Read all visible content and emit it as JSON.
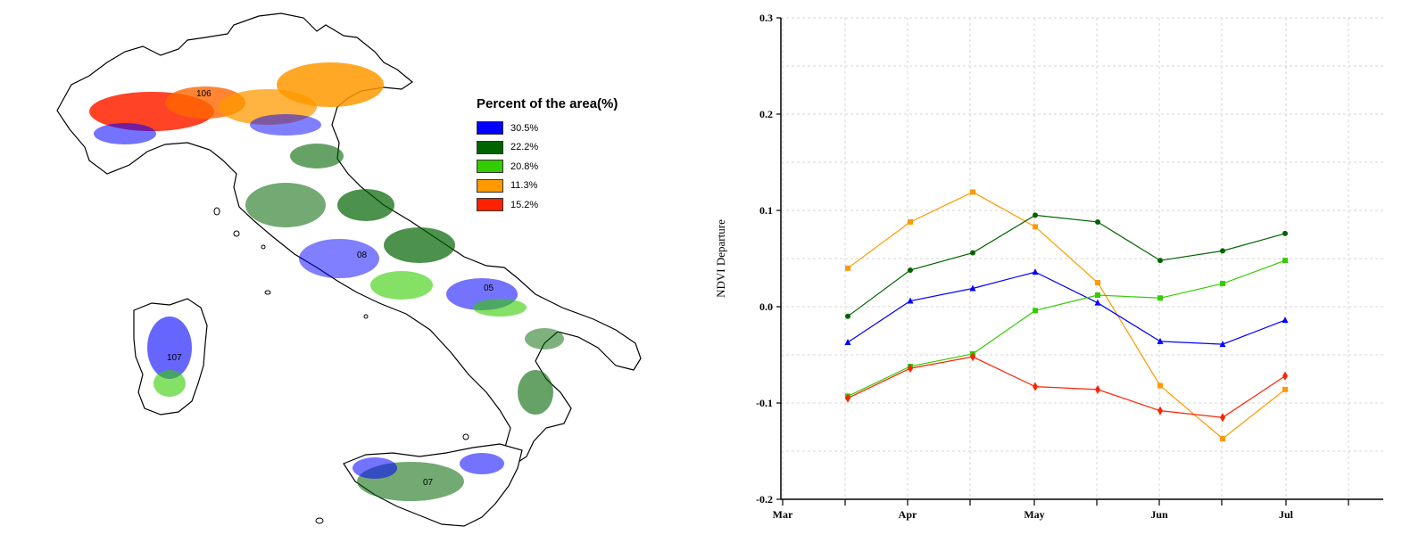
{
  "map": {
    "region_labels": [
      "106",
      "08",
      "107",
      "07",
      "05"
    ],
    "legend": {
      "title": "Percent of the area(%)",
      "items": [
        {
          "label": "30.5%",
          "color": "#0000ff"
        },
        {
          "label": "22.2%",
          "color": "#006400"
        },
        {
          "label": "20.8%",
          "color": "#33cc00"
        },
        {
          "label": "11.3%",
          "color": "#ff9900"
        },
        {
          "label": "15.2%",
          "color": "#ff2200"
        }
      ]
    }
  },
  "chart_data": {
    "type": "line",
    "title": "",
    "xlabel": "",
    "ylabel": "NDVI Departure",
    "ylim": [
      -0.2,
      0.3
    ],
    "yticks": [
      "-0.2",
      "-0.1",
      "0.0",
      "0.1",
      "0.2",
      "0.3"
    ],
    "xticks": [
      "Mar",
      "Apr",
      "May",
      "Jun",
      "Jul"
    ],
    "grid": true,
    "x": [
      "Mar 16",
      "Apr 1",
      "Apr 16",
      "May 1",
      "May 16",
      "Jun 1",
      "Jun 16",
      "Jul 1"
    ],
    "series": [
      {
        "color": "#ff9900",
        "marker": "square",
        "values": [
          0.04,
          0.088,
          0.119,
          0.083,
          0.025,
          -0.082,
          -0.137,
          -0.086
        ]
      },
      {
        "color": "#006400",
        "marker": "circle",
        "values": [
          -0.01,
          0.038,
          0.056,
          0.095,
          0.088,
          0.048,
          0.058,
          0.076
        ]
      },
      {
        "color": "#0000ff",
        "marker": "triangle",
        "values": [
          -0.037,
          0.006,
          0.019,
          0.036,
          0.004,
          -0.036,
          -0.039,
          -0.014
        ]
      },
      {
        "color": "#33cc00",
        "marker": "square",
        "values": [
          -0.093,
          -0.062,
          -0.049,
          -0.004,
          0.012,
          0.009,
          0.024,
          0.048
        ]
      },
      {
        "color": "#ff2200",
        "marker": "diamond",
        "values": [
          -0.095,
          -0.064,
          -0.052,
          -0.083,
          -0.086,
          -0.108,
          -0.115,
          -0.072
        ]
      }
    ]
  }
}
